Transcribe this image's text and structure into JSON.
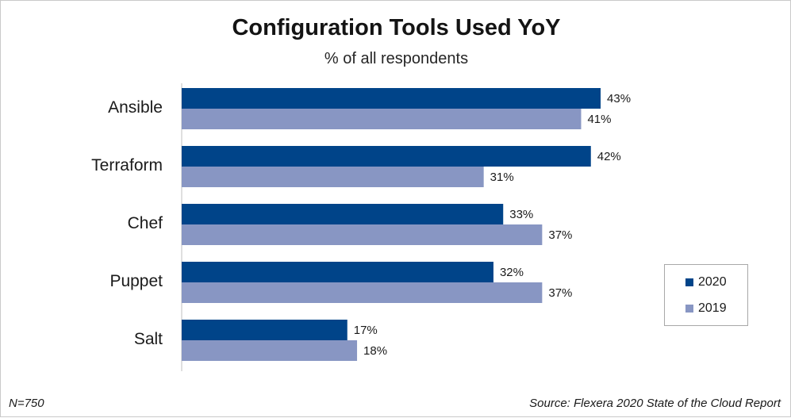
{
  "chart_data": {
    "type": "bar",
    "orientation": "horizontal",
    "title": "Configuration Tools Used YoY",
    "subtitle": "% of all respondents",
    "categories": [
      "Ansible",
      "Terraform",
      "Chef",
      "Puppet",
      "Salt"
    ],
    "series": [
      {
        "name": "2020",
        "color": "#004489",
        "values": [
          43,
          42,
          33,
          32,
          17
        ]
      },
      {
        "name": "2019",
        "color": "#8896c3",
        "values": [
          41,
          31,
          37,
          37,
          18
        ]
      }
    ],
    "value_suffix": "%",
    "xlim": [
      0,
      50
    ],
    "grid": false,
    "legend_position": "right",
    "footnote_left": "N=750",
    "footnote_right": "Source: Flexera 2020 State of the Cloud Report"
  }
}
